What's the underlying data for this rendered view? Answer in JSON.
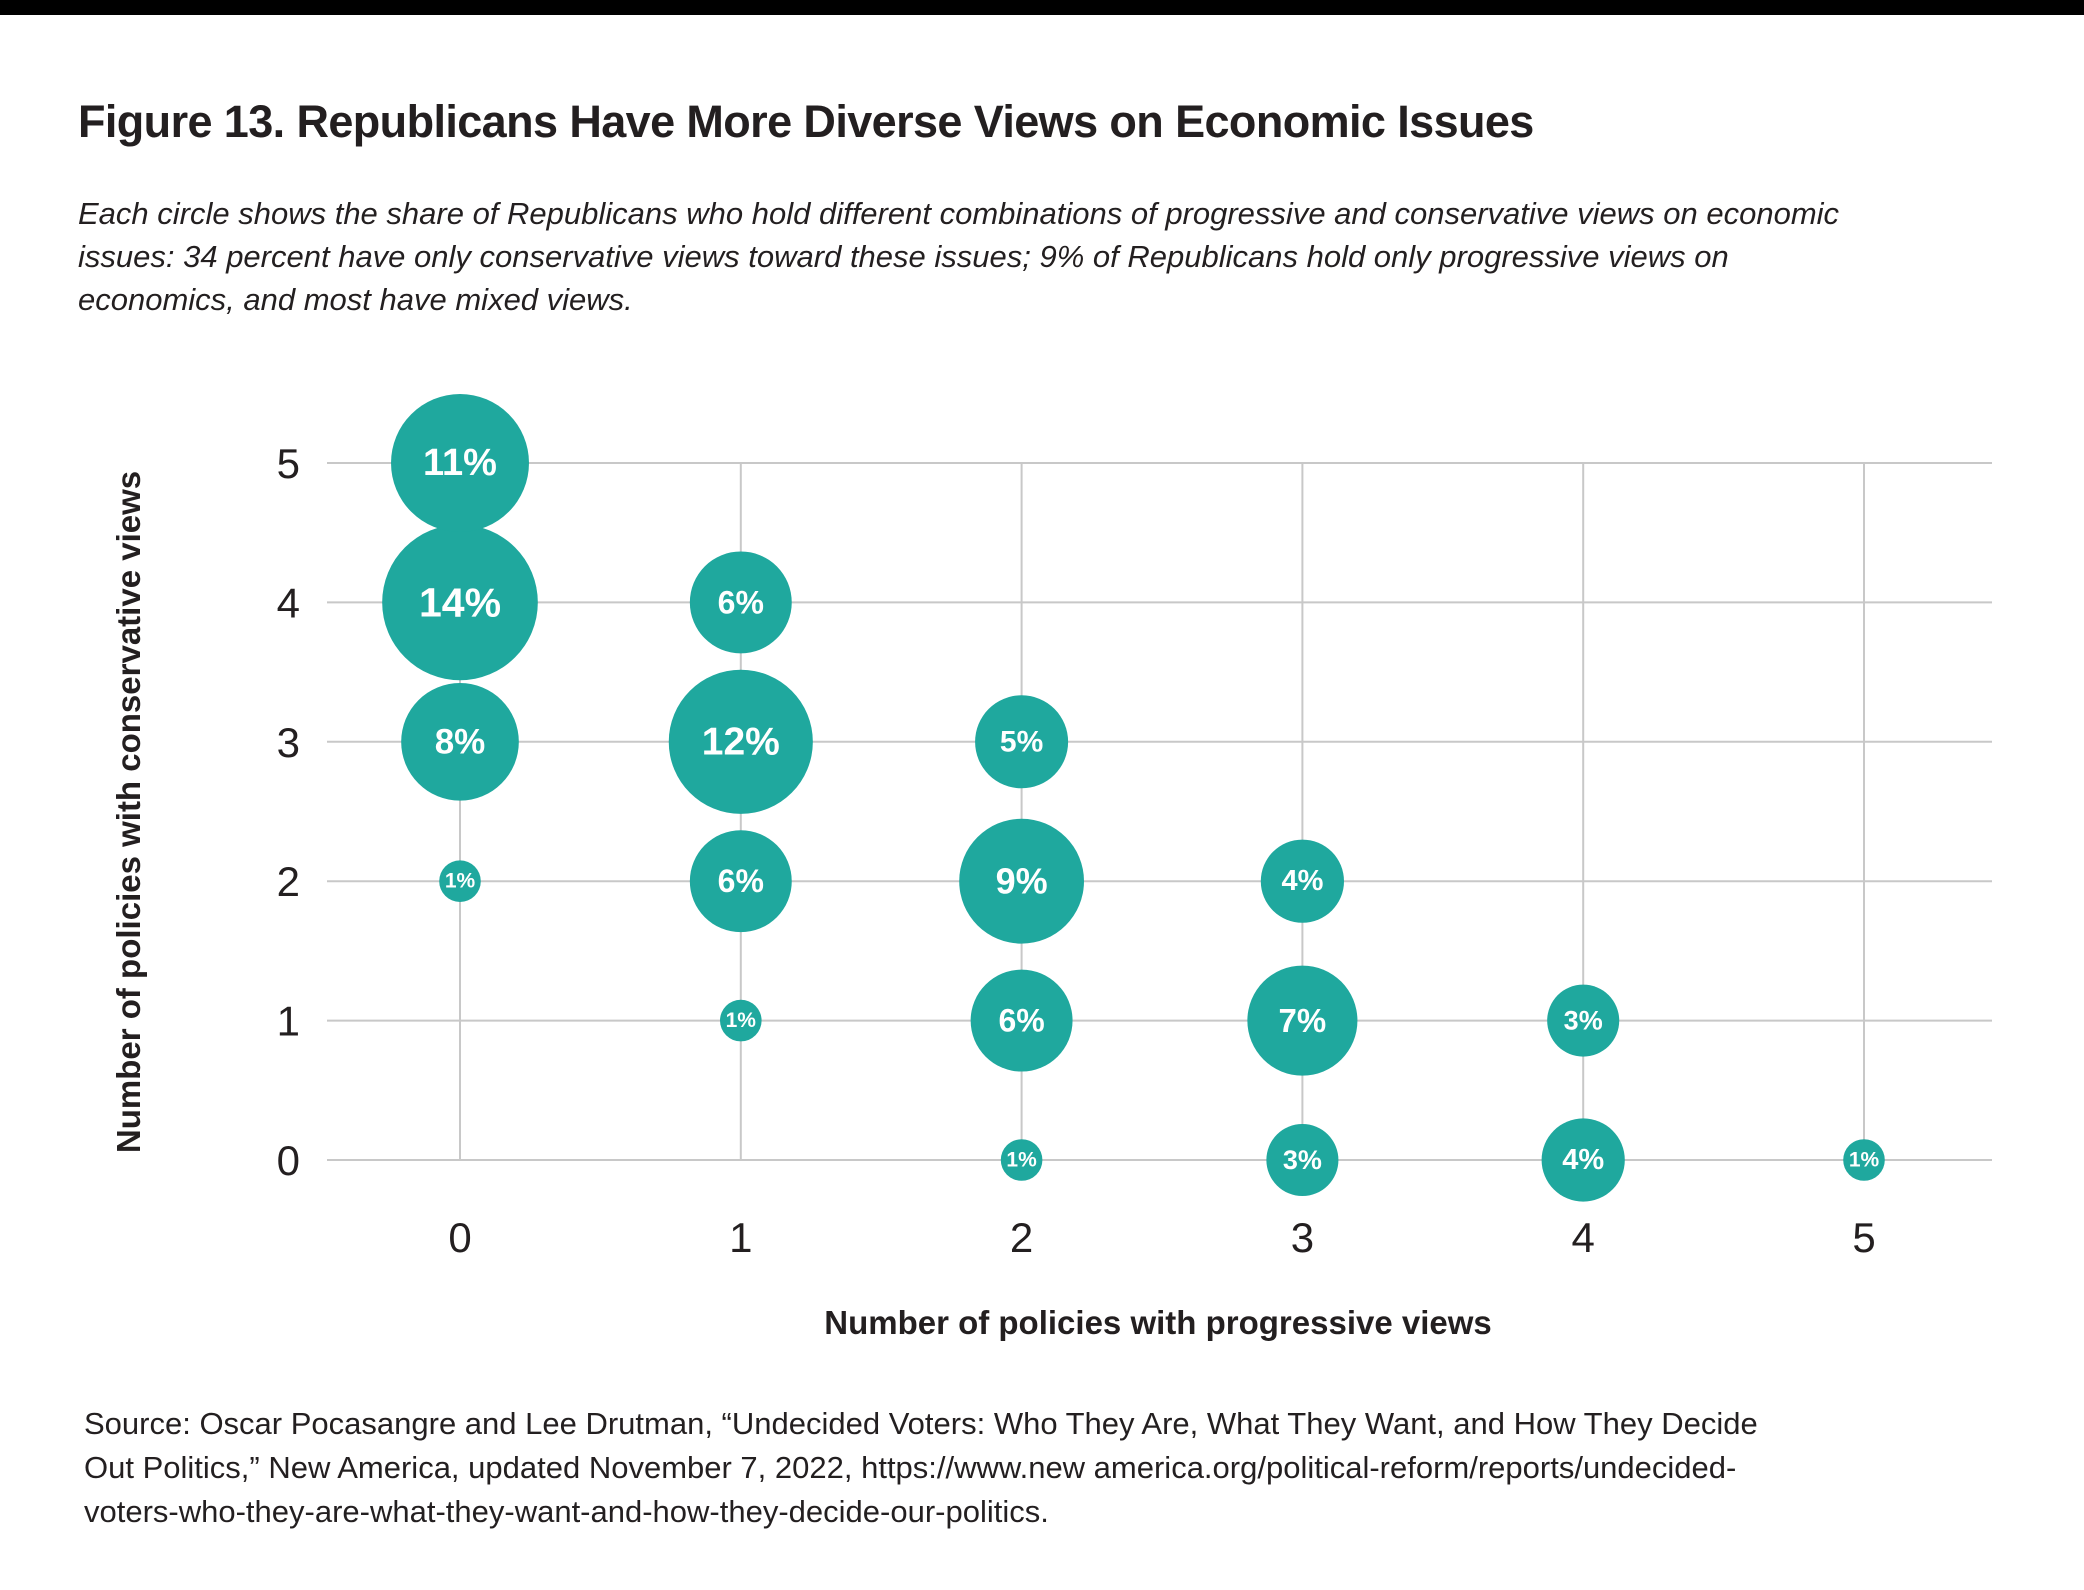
{
  "page": {
    "colors": {
      "top_bar": "#000000",
      "background": "#ffffff",
      "text": "#231f20",
      "grid": "#c8c8c8",
      "bubble": "#1fa89e",
      "bubble_label": "#ffffff"
    }
  },
  "header": {
    "title": "Figure 13. Republicans Have More Diverse Views on Economic Issues",
    "description_lines": [
      "Each circle shows the share of Republicans who hold different combinations of progressive and conservative views on economic",
      "issues: 34 percent have only conservative views toward these issues; 9% of Republicans hold only progressive views on",
      "economics, and most have mixed views."
    ]
  },
  "chart_data": {
    "type": "bubble",
    "title": "",
    "xlabel": "Number of policies with progressive views",
    "ylabel": "Number of policies with conservative views",
    "x_ticks": [
      0,
      1,
      2,
      3,
      4,
      5
    ],
    "y_ticks": [
      0,
      1,
      2,
      3,
      4,
      5
    ],
    "xlim": [
      -0.48,
      5.46
    ],
    "ylim": [
      0,
      5
    ],
    "grid": true,
    "legend": "none",
    "value_unit": "% of Republicans",
    "points": [
      {
        "x": 0,
        "y": 5,
        "value": 11,
        "label": "11%"
      },
      {
        "x": 0,
        "y": 4,
        "value": 14,
        "label": "14%"
      },
      {
        "x": 0,
        "y": 3,
        "value": 8,
        "label": "8%"
      },
      {
        "x": 0,
        "y": 2,
        "value": 1,
        "label": "1%"
      },
      {
        "x": 1,
        "y": 4,
        "value": 6,
        "label": "6%"
      },
      {
        "x": 1,
        "y": 3,
        "value": 12,
        "label": "12%"
      },
      {
        "x": 1,
        "y": 2,
        "value": 6,
        "label": "6%"
      },
      {
        "x": 1,
        "y": 1,
        "value": 1,
        "label": "1%"
      },
      {
        "x": 2,
        "y": 3,
        "value": 5,
        "label": "5%"
      },
      {
        "x": 2,
        "y": 2,
        "value": 9,
        "label": "9%"
      },
      {
        "x": 2,
        "y": 1,
        "value": 6,
        "label": "6%"
      },
      {
        "x": 2,
        "y": 0,
        "value": 1,
        "label": "1%"
      },
      {
        "x": 3,
        "y": 2,
        "value": 4,
        "label": "4%"
      },
      {
        "x": 3,
        "y": 1,
        "value": 7,
        "label": "7%"
      },
      {
        "x": 3,
        "y": 0,
        "value": 3,
        "label": "3%"
      },
      {
        "x": 4,
        "y": 1,
        "value": 3,
        "label": "3%"
      },
      {
        "x": 4,
        "y": 0,
        "value": 4,
        "label": "4%"
      },
      {
        "x": 5,
        "y": 0,
        "value": 1,
        "label": "1%"
      }
    ]
  },
  "source": {
    "lines": [
      "Source: Oscar Pocasangre and Lee Drutman, “Undecided Voters: Who They Are, What They Want, and How They Decide",
      "Out Politics,” New America, updated November 7, 2022, https://www.new america.org/political-reform/reports/undecided-",
      "voters-who-they-are-what-they-want-and-how-they-decide-our-politics."
    ]
  }
}
